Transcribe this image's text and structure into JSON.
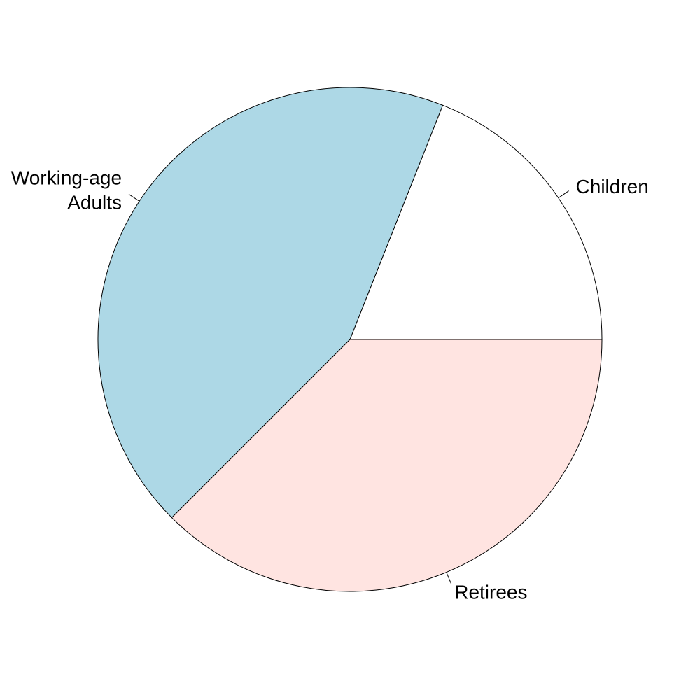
{
  "chart_data": {
    "type": "pie",
    "title": "",
    "slices": [
      {
        "label_lines": [
          "Children"
        ],
        "value": 0.19,
        "color": "#ffffff"
      },
      {
        "label_lines": [
          "Working-age",
          "Adults"
        ],
        "value": 0.435,
        "color": "#add8e6"
      },
      {
        "label_lines": [
          "Retirees"
        ],
        "value": 0.375,
        "color": "#ffe4e1"
      }
    ],
    "start_angle": "0° (3 o'clock)",
    "direction": "counterclockwise",
    "legend": "none"
  }
}
